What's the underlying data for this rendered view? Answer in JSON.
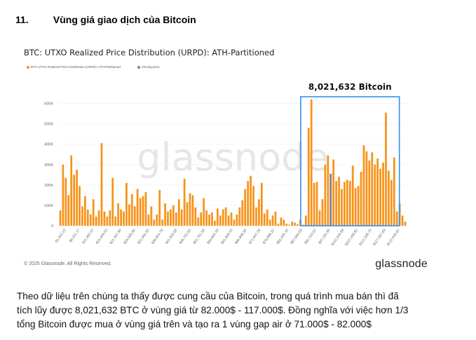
{
  "section": {
    "number": "11.",
    "title": "Vùng giá giao dịch của Bitcoin"
  },
  "chart_data": {
    "type": "bar",
    "title": "BTC: UTXO Realized Price Distribution (URPD): ATH-Partitioned",
    "legend": [
      {
        "name": "BTC UTXO Realized Price Distribution (URPD): ATH-Partitioned",
        "color": "#f7931a"
      },
      {
        "name": "Closing price",
        "color": "#7f7f7f"
      }
    ],
    "y_ticks": [
      "0",
      "100K",
      "200K",
      "300K",
      "400K",
      "500K",
      "600K"
    ],
    "ylim": [
      0,
      650000
    ],
    "x_ticks": [
      "$1,262.23",
      "$6,311.17",
      "$11,360.10",
      "$16,409.03",
      "$21,457.96",
      "$26,506.90",
      "$31,555.83",
      "$36,604.76",
      "$41,653.69",
      "$46,702.63",
      "$51,751.56",
      "$56,800.49",
      "$61,849.43",
      "$66,898.36",
      "$71,947.29",
      "$76,996.22",
      "$82,045.16",
      "$87,094.09",
      "$92,143.02",
      "$97,191.95",
      "$102,240.89",
      "$107,289.82",
      "$112,338.75",
      "$117,387.69",
      "$122,436.62"
    ],
    "values": [
      75000,
      300000,
      235000,
      150000,
      345000,
      250000,
      275000,
      195000,
      95000,
      145000,
      80000,
      55000,
      130000,
      45000,
      75000,
      405000,
      70000,
      45000,
      75000,
      235000,
      45000,
      110000,
      80000,
      70000,
      210000,
      105000,
      155000,
      95000,
      180000,
      135000,
      145000,
      165000,
      55000,
      95000,
      30000,
      55000,
      175000,
      30000,
      110000,
      70000,
      80000,
      100000,
      65000,
      130000,
      80000,
      230000,
      115000,
      160000,
      150000,
      90000,
      40000,
      65000,
      135000,
      75000,
      55000,
      65000,
      25000,
      85000,
      50000,
      80000,
      90000,
      50000,
      65000,
      30000,
      55000,
      90000,
      125000,
      180000,
      220000,
      245000,
      195000,
      90000,
      130000,
      210000,
      60000,
      80000,
      30000,
      50000,
      70000,
      10000,
      40000,
      30000,
      10000,
      5000,
      20000,
      15000,
      8000,
      30000,
      5000,
      50000,
      480000,
      620000,
      210000,
      215000,
      75000,
      130000,
      300000,
      345000,
      255000,
      325000,
      220000,
      240000,
      180000,
      215000,
      225000,
      220000,
      295000,
      185000,
      195000,
      265000,
      395000,
      365000,
      320000,
      360000,
      300000,
      330000,
      280000,
      310000,
      555000,
      270000,
      225000,
      335000,
      70000,
      110000,
      50000,
      20000
    ],
    "closing_price_bar_index": 98,
    "highlight": {
      "label": "8,021,632 Bitcoin",
      "from_index": 88,
      "to_index": 122
    },
    "watermark": "glassnode",
    "brand": "glassnode",
    "copyright": "© 2025 Glassnode. All Rights Reserved."
  },
  "body": {
    "line1": "Theo dữ liệu trên chúng ta thấy được cung cầu của Bitcoin, trong quá trình mua bán thì đã",
    "line2": "tích lũy được 8,021,632 BTC ở vùng giá từ 82.000$ - 117.000$. Đồng nghĩa với việc hơn 1/3",
    "line3": "tổng Bitcoin được mua ở vùng giá trên và tạo ra 1 vùng gap air ở 71.000$ - 82.000$"
  },
  "colors": {
    "bar": "#f7931a",
    "closing": "#7f7f7f",
    "highlight": "#2e90fa"
  }
}
